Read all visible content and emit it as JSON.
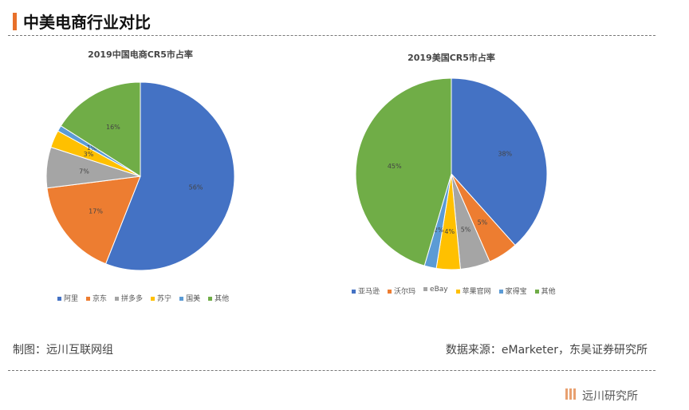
{
  "header": {
    "title": "中美电商行业对比"
  },
  "chart_data": [
    {
      "type": "pie",
      "title": "2019中国电商CR5市占率",
      "categories": [
        "阿里",
        "京东",
        "拼多多",
        "苏宁",
        "国美",
        "其他"
      ],
      "values": [
        56,
        17,
        7,
        3,
        1,
        16
      ],
      "labels": [
        "56%",
        "17%",
        "7%",
        "3%",
        "1%",
        "16%"
      ],
      "colors": [
        "#4472c4",
        "#ed7d31",
        "#a5a5a5",
        "#ffc000",
        "#5b9bd5",
        "#70ad47"
      ],
      "legend": "bottom"
    },
    {
      "type": "pie",
      "title": "2019美国CR5市占率",
      "categories": [
        "亚马逊",
        "沃尔玛",
        "eBay",
        "苹果官网",
        "家得宝",
        "其他"
      ],
      "values": [
        38,
        5,
        5,
        4,
        2,
        45
      ],
      "labels": [
        "38%",
        "5%",
        "5%",
        "4%",
        "2%",
        "45%"
      ],
      "colors": [
        "#4472c4",
        "#ed7d31",
        "#a5a5a5",
        "#ffc000",
        "#5b9bd5",
        "#70ad47"
      ],
      "legend": "bottom"
    }
  ],
  "footer": {
    "left": "制图：远川互联网组",
    "right": "数据来源：eMarketer，东吴证券研究所",
    "logo": "远川研究所"
  }
}
